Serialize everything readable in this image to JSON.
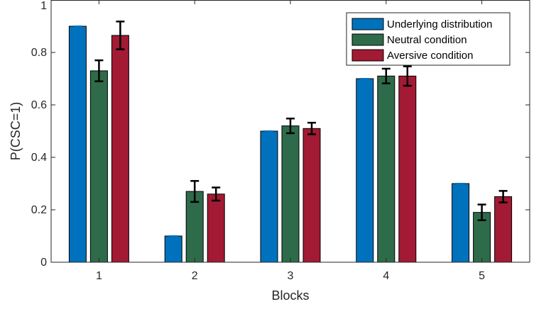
{
  "chart_data": {
    "type": "bar",
    "title": "",
    "xlabel": "Blocks",
    "ylabel": "P(CSC=1)",
    "categories": [
      "1",
      "2",
      "3",
      "4",
      "5"
    ],
    "ylim": [
      0,
      1
    ],
    "yticks": [
      "0",
      "0.2",
      "0.4",
      "0.6",
      "0.8",
      "1"
    ],
    "grid": false,
    "legend_position": "top-right",
    "series": [
      {
        "name": "Underlying distribution",
        "color": "#0072BD",
        "values": [
          0.9,
          0.1,
          0.5,
          0.7,
          0.3
        ],
        "errors": [
          0.0,
          0.0,
          0.0,
          0.0,
          0.0
        ]
      },
      {
        "name": "Neutral condition",
        "color": "#2E6B4A",
        "values": [
          0.73,
          0.27,
          0.52,
          0.71,
          0.19
        ],
        "errors": [
          0.04,
          0.04,
          0.028,
          0.028,
          0.03
        ]
      },
      {
        "name": "Aversive condition",
        "color": "#A21A33",
        "values": [
          0.865,
          0.26,
          0.51,
          0.71,
          0.25
        ],
        "errors": [
          0.053,
          0.025,
          0.022,
          0.037,
          0.022
        ]
      }
    ]
  }
}
